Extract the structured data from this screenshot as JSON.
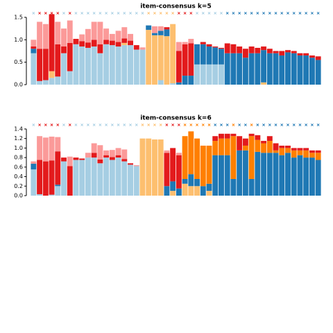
{
  "chart_data": [
    {
      "type": "stacked_bar",
      "title": "item-consensus k=5",
      "ylim": [
        0,
        1.6
      ],
      "yticks": [
        {
          "value": 0,
          "label": "0.0"
        },
        {
          "value": 0.5,
          "label": "0.5"
        },
        {
          "value": 1,
          "label": "1.0"
        },
        {
          "value": 1.5,
          "label": "1.5"
        }
      ],
      "markers": true,
      "series": [
        {
          "color": "#a6cee3",
          "values": [
            0.7,
            0.08,
            0.1,
            0.15,
            0.18,
            0.7,
            0.3,
            0.9,
            0.85,
            0.82,
            0.85,
            0.7,
            0.9,
            0.88,
            0.85,
            0.88,
            0.88,
            0.78,
            0.78,
            0,
            0,
            0.1,
            0,
            0.03,
            0,
            0,
            0,
            0.45,
            0.45,
            0.45,
            0.45,
            0.45,
            0,
            0,
            0,
            0,
            0,
            0,
            0,
            0,
            0,
            0,
            0,
            0,
            0,
            0,
            0,
            0
          ]
        },
        {
          "color": "#fdbf6f",
          "values": [
            0,
            0,
            0,
            0.15,
            0,
            0,
            0,
            0,
            0,
            0,
            0,
            0,
            0,
            0,
            0,
            0.05,
            0,
            0,
            0,
            1.22,
            1.1,
            1.0,
            1.08,
            1.32,
            0,
            0,
            0,
            0,
            0,
            0,
            0,
            0,
            0,
            0,
            0,
            0,
            0,
            0,
            0.05,
            0,
            0,
            0,
            0,
            0,
            0,
            0,
            0,
            0
          ]
        },
        {
          "color": "#1f78b4",
          "values": [
            0.1,
            0,
            0,
            0,
            0,
            0,
            0,
            0,
            0,
            0,
            0,
            0,
            0,
            0,
            0,
            0,
            0,
            0,
            0,
            0.1,
            0.05,
            0.1,
            0.15,
            0,
            0.05,
            0.2,
            0.2,
            0.45,
            0.45,
            0.4,
            0.38,
            0.35,
            0.7,
            0.7,
            0.7,
            0.6,
            0.7,
            0.7,
            0.72,
            0.7,
            0.7,
            0.65,
            0.72,
            0.7,
            0.65,
            0.65,
            0.6,
            0.55
          ]
        },
        {
          "color": "#e31a1c",
          "values": [
            0.05,
            0.72,
            0.7,
            1.27,
            0.72,
            0.15,
            0.63,
            0.12,
            0.12,
            0.12,
            0.15,
            0.2,
            0.1,
            0.1,
            0.1,
            0.1,
            0.1,
            0.1,
            0,
            0,
            0,
            0,
            0.05,
            0,
            0.7,
            0.7,
            0.72,
            0,
            0.05,
            0.05,
            0.02,
            0.02,
            0.22,
            0.2,
            0.15,
            0.2,
            0.15,
            0.12,
            0.08,
            0.1,
            0.05,
            0.1,
            0.05,
            0.05,
            0.05,
            0.05,
            0.05,
            0.08
          ]
        },
        {
          "color": "#fb9a99",
          "values": [
            0.15,
            0.6,
            0.55,
            0,
            0.5,
            0.4,
            0.5,
            0,
            0.15,
            0.3,
            0.4,
            0.5,
            0.25,
            0.15,
            0.25,
            0.25,
            0.15,
            0,
            0.05,
            0,
            0.15,
            0.1,
            0,
            0,
            0.2,
            0.05,
            0.1,
            0,
            0,
            0,
            0,
            0,
            0,
            0,
            0,
            0,
            0,
            0,
            0,
            0,
            0,
            0,
            0,
            0,
            0,
            0,
            0,
            0
          ]
        }
      ]
    },
    {
      "type": "stacked_bar",
      "title": "item-consensus k=6",
      "ylim": [
        0,
        1.45
      ],
      "yticks": [
        {
          "value": 0,
          "label": "0.0"
        },
        {
          "value": 0.2,
          "label": "0.2"
        },
        {
          "value": 0.4,
          "label": "0.4"
        },
        {
          "value": 0.6,
          "label": "0.6"
        },
        {
          "value": 0.8,
          "label": "0.8"
        },
        {
          "value": 1,
          "label": "1.0"
        },
        {
          "value": 1.2,
          "label": "1.2"
        },
        {
          "value": 1.4,
          "label": "1.4"
        }
      ],
      "markers": true,
      "series": [
        {
          "color": "#a6cee3",
          "values": [
            0.55,
            0.03,
            0,
            0.02,
            0.2,
            0.72,
            0,
            0.75,
            0.75,
            0.8,
            0.8,
            0.68,
            0.8,
            0.75,
            0.8,
            0.72,
            0.65,
            0.62,
            0,
            0,
            0,
            0,
            0,
            0,
            0,
            0,
            0,
            0,
            0,
            0,
            0,
            0,
            0,
            0,
            0,
            0,
            0,
            0,
            0,
            0,
            0,
            0,
            0,
            0,
            0,
            0,
            0,
            0
          ]
        },
        {
          "color": "#fdbf6f",
          "values": [
            0,
            0,
            0,
            0,
            0,
            0,
            0,
            0,
            0,
            0,
            0,
            0,
            0,
            0,
            0,
            0,
            0,
            0,
            1.2,
            1.2,
            1.18,
            1.18,
            0,
            0.1,
            0,
            0.25,
            0.2,
            0.2,
            0,
            0.1,
            0,
            0,
            0,
            0,
            0,
            0,
            0,
            0,
            0,
            0,
            0,
            0,
            0,
            0,
            0,
            0,
            0,
            0
          ]
        },
        {
          "color": "#1f78b4",
          "values": [
            0.12,
            0,
            0,
            0,
            0.03,
            0,
            0,
            0,
            0,
            0,
            0,
            0,
            0,
            0,
            0,
            0,
            0,
            0,
            0,
            0,
            0,
            0,
            0.2,
            0.2,
            0.15,
            0.1,
            0.25,
            0.15,
            0.2,
            0.15,
            0.85,
            0.85,
            0.85,
            0.35,
            0.95,
            0.95,
            0.35,
            0.92,
            0.9,
            0.9,
            0.9,
            0.85,
            0.9,
            0.8,
            0.85,
            0.8,
            0.8,
            0.75
          ]
        },
        {
          "color": "#ff7f00",
          "values": [
            0,
            0,
            0,
            0,
            0,
            0,
            0,
            0,
            0,
            0,
            0,
            0,
            0,
            0,
            0,
            0,
            0,
            0,
            0,
            0,
            0,
            0,
            0,
            0,
            0,
            0.9,
            0.9,
            0.85,
            0.85,
            0.8,
            0.3,
            0.35,
            0.35,
            0.9,
            0,
            0.1,
            0.9,
            0.25,
            0.2,
            0.25,
            0.05,
            0.15,
            0.1,
            0.15,
            0.1,
            0.15,
            0.1,
            0.15
          ]
        },
        {
          "color": "#e31a1c",
          "values": [
            0,
            0.72,
            0.72,
            0.72,
            0.7,
            0.08,
            0.62,
            0.05,
            0.03,
            0,
            0.1,
            0.08,
            0.05,
            0.06,
            0.05,
            0.05,
            0.03,
            0,
            0,
            0,
            0,
            0,
            0.7,
            0.7,
            0.7,
            0,
            0,
            0,
            0,
            0,
            0.1,
            0.1,
            0.1,
            0.05,
            0.3,
            0.15,
            0.05,
            0.1,
            0.05,
            0.1,
            0.15,
            0.05,
            0.05,
            0.05,
            0.05,
            0.05,
            0.05,
            0.05
          ]
        },
        {
          "color": "#fb9a99",
          "values": [
            0.05,
            0.5,
            0.5,
            0.5,
            0.3,
            0,
            0.2,
            0,
            0,
            0.1,
            0.2,
            0.3,
            0.1,
            0.15,
            0.15,
            0.2,
            0,
            0.02,
            0,
            0,
            0,
            0,
            0.05,
            0,
            0.05,
            0,
            0,
            0,
            0,
            0,
            0,
            0,
            0,
            0,
            0,
            0,
            0,
            0,
            0,
            0,
            0,
            0,
            0,
            0,
            0,
            0,
            0,
            0
          ]
        }
      ]
    }
  ]
}
